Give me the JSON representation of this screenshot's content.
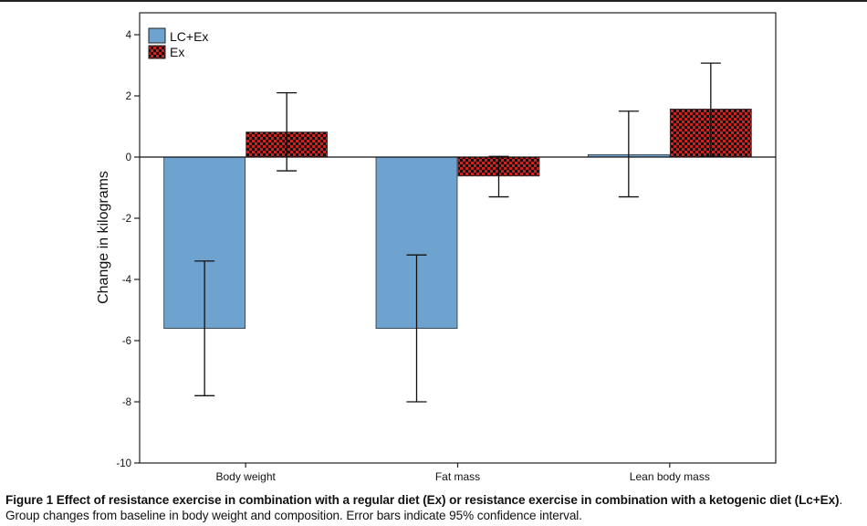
{
  "chart_data": {
    "type": "bar",
    "categories": [
      "Body weight",
      "Fat mass",
      "Lean body mass"
    ],
    "series": [
      {
        "name": "LC+Ex",
        "values": [
          -5.6,
          -5.6,
          0.08
        ],
        "ci_low": [
          -7.8,
          -8.0,
          -1.3
        ],
        "ci_high": [
          -3.4,
          -3.2,
          1.5
        ],
        "color": "#6fa3cf"
      },
      {
        "name": "Ex",
        "values": [
          0.82,
          -0.62,
          1.57
        ],
        "ci_low": [
          -0.45,
          -1.3,
          0.02
        ],
        "ci_high": [
          2.1,
          0.02,
          3.07
        ],
        "color": "#cc2222"
      }
    ],
    "ylabel": "Change in kilograms",
    "xlabel": "",
    "ylim": [
      -10,
      4.8
    ],
    "yticks": [
      4,
      2,
      0,
      -2,
      -4,
      -6,
      -8,
      -10
    ],
    "legend": "top-left"
  },
  "caption": {
    "label": "Figure 1",
    "title": " Effect of resistance exercise in combination with a regular diet (Ex) or resistance exercise in combination with a ketogenic diet (Lc+Ex)",
    "text": ". Group changes from baseline in body weight and composition. Error bars indicate 95% confidence interval."
  }
}
